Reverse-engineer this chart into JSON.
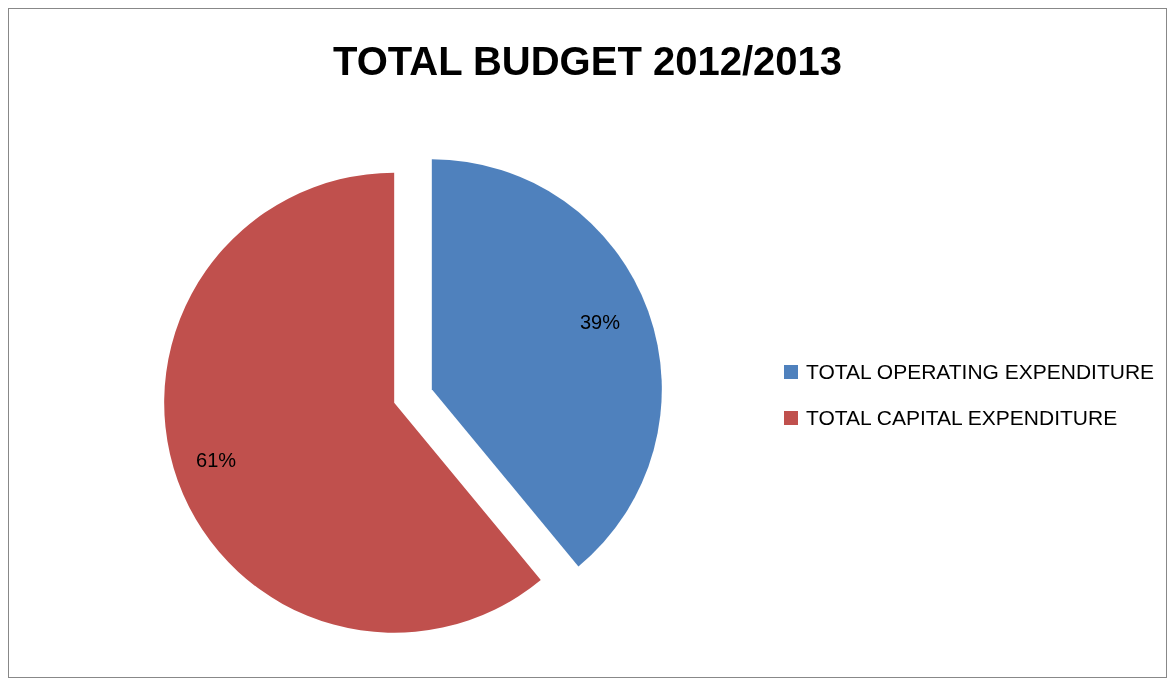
{
  "chart_data": {
    "type": "pie",
    "title": "TOTAL BUDGET 2012/2013",
    "categories": [
      "TOTAL OPERATING EXPENDITURE",
      "TOTAL CAPITAL EXPENDITURE"
    ],
    "values": [
      39,
      61
    ],
    "colors": [
      "#4f81bd",
      "#c0504d"
    ],
    "value_labels": [
      "39%",
      "61%"
    ],
    "legend": "right"
  }
}
